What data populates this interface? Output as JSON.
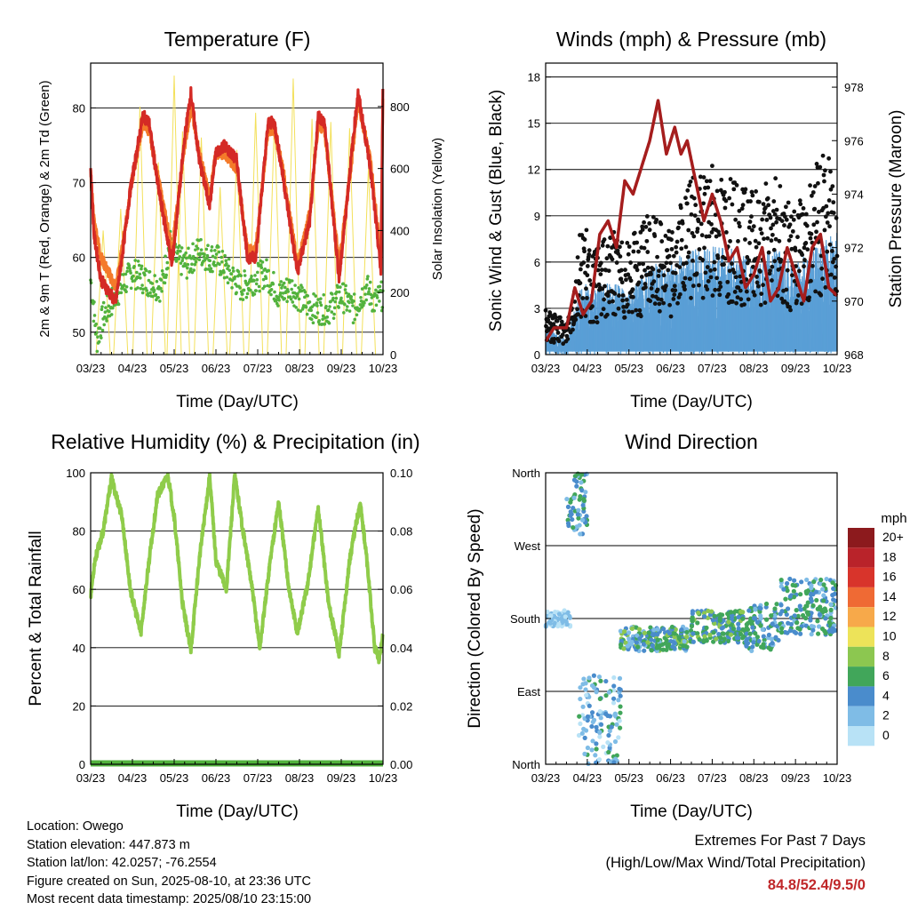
{
  "charts": {
    "temperature": {
      "title": "Temperature (F)",
      "xlabel": "Time (Day/UTC)",
      "ylabel_left": "2m & 9m T (Red, Orange) & 2m Td (Green)",
      "ylabel_right": "Solar Insolation (Yellow)"
    },
    "winds": {
      "title": "Winds (mph) & Pressure (mb)",
      "xlabel": "Time (Day/UTC)",
      "ylabel_left": "Sonic Wind & Gust (Blue, Black)",
      "ylabel_right": "Station Pressure (Maroon)"
    },
    "humidity": {
      "title": "Relative Humidity (%) & Precipitation (in)",
      "xlabel": "Time (Day/UTC)",
      "ylabel_left": "Percent & Total Rainfall"
    },
    "direction": {
      "title": "Wind Direction",
      "xlabel": "Time (Day/UTC)",
      "ylabel_left": "Direction (Colored By Speed)",
      "legend_title": "mph"
    }
  },
  "info": {
    "location": "Location: Owego",
    "elevation": "Station elevation: 447.873 m",
    "latlon": "Station lat/lon: 42.0257; -76.2554",
    "created": "Figure created on Sun, 2025-08-10, at 23:36 UTC",
    "recent": "Most recent data timestamp: 2025/08/10 23:15:00"
  },
  "extremes": {
    "title": "Extremes For Past 7 Days",
    "subtitle": "(High/Low/Max Wind/Total Precipitation)",
    "values": "84.8/52.4/9.5/0"
  },
  "chart_data": [
    {
      "id": "temperature",
      "type": "line",
      "x_ticks": [
        "03/23",
        "04/23",
        "05/23",
        "06/23",
        "07/23",
        "08/23",
        "09/23",
        "10/23"
      ],
      "y_left_ticks": [
        50,
        60,
        70,
        80
      ],
      "ylim_left": [
        47,
        86
      ],
      "y_right_ticks": [
        0,
        200,
        400,
        600,
        800
      ],
      "ylim_right": [
        0,
        940
      ],
      "grid": "horizontal",
      "series": [
        {
          "color": "#d42a25",
          "x": [
            0,
            0.08,
            0.25,
            0.6,
            0.75,
            0.95,
            1.25,
            1.4,
            1.6,
            1.95,
            2.25,
            2.4,
            2.6,
            2.85,
            3.0,
            3.2,
            3.5,
            3.75,
            3.95,
            4.25,
            4.4,
            4.6,
            4.95,
            5.25,
            5.45,
            5.6,
            5.95,
            6.25,
            6.4,
            6.7,
            6.95,
            7.0
          ],
          "y": [
            72,
            63,
            57,
            54,
            60,
            69,
            79,
            78,
            70,
            59,
            76,
            82,
            73,
            67,
            74,
            75,
            73,
            60,
            60,
            78,
            78,
            71,
            58,
            65,
            79,
            78,
            57,
            74,
            82,
            72,
            58,
            84
          ]
        },
        {
          "color": "#f47a2a",
          "x": [
            0,
            0.08,
            0.25,
            0.6,
            0.75,
            0.95,
            1.25,
            1.4,
            1.6,
            1.95,
            2.25,
            2.4,
            2.6,
            2.85,
            3.0,
            3.2,
            3.5,
            3.75,
            3.95,
            4.25,
            4.4,
            4.6,
            4.95,
            5.25,
            5.45,
            5.6,
            5.95,
            6.25,
            6.4,
            6.7,
            6.95,
            7.0
          ],
          "y": [
            71,
            65,
            60,
            56,
            61,
            69,
            78,
            77,
            71,
            61,
            75,
            80,
            74,
            68,
            74,
            74,
            72,
            61,
            61,
            77,
            77,
            72,
            59,
            66,
            78,
            77,
            59,
            73,
            81,
            73,
            60,
            83
          ]
        },
        {
          "color": "#52b23d",
          "x": [
            0,
            0.15,
            0.3,
            0.6,
            1.0,
            1.3,
            1.7,
            1.9,
            2.0,
            2.3,
            2.6,
            2.8,
            3.0,
            3.3,
            3.6,
            3.9,
            4.2,
            4.5,
            4.8,
            5.1,
            5.4,
            5.7,
            6.0,
            6.3,
            6.6,
            6.8,
            7.0
          ],
          "y": [
            57,
            49,
            52,
            55,
            58,
            57,
            56,
            62,
            60,
            59,
            61,
            60,
            60,
            58,
            56,
            57,
            58,
            55,
            56,
            54,
            53,
            53,
            55,
            53,
            56,
            54,
            55
          ]
        },
        {
          "color": "#f3e05a",
          "kind": "solar",
          "peaks": [
            0.3,
            0.72,
            1.18,
            1.62,
            2.0,
            2.2,
            2.65,
            3.1,
            3.5,
            3.95,
            4.4,
            4.85,
            5.3,
            5.75,
            6.2,
            6.65
          ],
          "vals": [
            400,
            470,
            800,
            620,
            900,
            720,
            700,
            540,
            660,
            780,
            760,
            890,
            760,
            750,
            730,
            600
          ]
        }
      ]
    },
    {
      "id": "winds",
      "type": "scatter",
      "x_ticks": [
        "03/23",
        "04/23",
        "05/23",
        "06/23",
        "07/23",
        "08/23",
        "09/23",
        "10/23"
      ],
      "y_left_ticks": [
        0,
        3,
        6,
        9,
        12,
        15,
        18
      ],
      "ylim_left": [
        0,
        18.9
      ],
      "y_right_ticks": [
        968,
        970,
        972,
        974,
        976,
        978
      ],
      "ylim_right": [
        968,
        978.9
      ],
      "grid": "horizontal",
      "series": [
        {
          "name": "",
          "color": "#111111",
          "kind": "gust_envelope",
          "x": [
            0,
            0.5,
            0.9,
            1.1,
            1.5,
            2.0,
            2.5,
            3.0,
            3.5,
            4.0,
            4.5,
            5.0,
            5.5,
            6.0,
            6.5,
            7.0
          ],
          "y": [
            3,
            2,
            9,
            6,
            8,
            7,
            9,
            8,
            11,
            12,
            11,
            10,
            11,
            9,
            12,
            13
          ]
        },
        {
          "name": "",
          "color": "#5a9fd6",
          "kind": "wind_envelope",
          "x": [
            0,
            0.5,
            0.9,
            1.1,
            1.5,
            2.0,
            2.5,
            3.0,
            3.5,
            4.0,
            4.5,
            5.0,
            5.5,
            6.0,
            6.5,
            7.0
          ],
          "y": [
            2,
            1,
            5,
            4,
            5,
            4,
            6,
            6,
            7,
            7,
            7,
            6,
            7,
            6,
            7,
            8
          ]
        },
        {
          "name": "",
          "color": "#a51d1d",
          "axis": "right",
          "x": [
            0,
            0.2,
            0.5,
            0.7,
            0.9,
            1.1,
            1.3,
            1.5,
            1.7,
            1.9,
            2.1,
            2.3,
            2.5,
            2.7,
            2.9,
            3.1,
            3.25,
            3.4,
            3.6,
            3.8,
            4.0,
            4.2,
            4.4,
            4.6,
            4.8,
            5.0,
            5.2,
            5.4,
            5.6,
            5.8,
            6.0,
            6.2,
            6.4,
            6.6,
            6.8,
            7.0
          ],
          "y": [
            968.5,
            969,
            969,
            970.5,
            969.5,
            970,
            972.5,
            973,
            972,
            974.5,
            974,
            975,
            976,
            977.5,
            975.5,
            976.5,
            975.5,
            976,
            974.5,
            973,
            974,
            973,
            971.5,
            972,
            970.5,
            971,
            972,
            970,
            970.5,
            972,
            971,
            970,
            972,
            972.5,
            970.5,
            970.2
          ]
        }
      ]
    },
    {
      "id": "humidity",
      "type": "line",
      "x_ticks": [
        "03/23",
        "04/23",
        "05/23",
        "06/23",
        "07/23",
        "08/23",
        "09/23",
        "10/23"
      ],
      "y_left_ticks": [
        0,
        20,
        40,
        60,
        80,
        100
      ],
      "ylim_left": [
        0,
        100
      ],
      "y_right_ticks": [
        "0.00",
        "0.02",
        "0.04",
        "0.06",
        "0.08",
        "0.10"
      ],
      "ylim_right": [
        0,
        0.1
      ],
      "grid": "horizontal",
      "series": [
        {
          "color": "#8fcc4a",
          "x": [
            0,
            0.1,
            0.3,
            0.5,
            0.75,
            0.95,
            1.2,
            1.4,
            1.6,
            1.85,
            2.0,
            2.2,
            2.4,
            2.6,
            2.85,
            3.0,
            3.25,
            3.45,
            3.65,
            3.85,
            4.05,
            4.3,
            4.5,
            4.75,
            4.95,
            5.2,
            5.45,
            5.7,
            5.95,
            6.2,
            6.45,
            6.6,
            6.8,
            6.9,
            7.0
          ],
          "y": [
            58,
            70,
            80,
            98,
            85,
            60,
            45,
            70,
            92,
            99,
            85,
            55,
            39,
            70,
            99,
            70,
            60,
            99,
            80,
            62,
            40,
            70,
            90,
            60,
            45,
            62,
            88,
            55,
            38,
            70,
            90,
            72,
            40,
            36,
            44
          ]
        },
        {
          "color": "#52b23d",
          "x": [
            0,
            7
          ],
          "y": [
            0,
            0
          ],
          "axis": "right"
        }
      ]
    },
    {
      "id": "direction",
      "type": "scatter",
      "x_ticks": [
        "03/23",
        "04/23",
        "05/23",
        "06/23",
        "07/23",
        "08/23",
        "09/23",
        "10/23"
      ],
      "y_ticks": [
        "North",
        "East",
        "South",
        "West",
        "North"
      ],
      "ylim": [
        0,
        360
      ],
      "grid": "horizontal",
      "legend": {
        "labels": [
          "0",
          "2",
          "4",
          "6",
          "8",
          "10",
          "12",
          "14",
          "16",
          "18",
          "20+"
        ],
        "colors": [
          "#b8e2f6",
          "#7fbce6",
          "#4a8ccc",
          "#41a65a",
          "#8cc750",
          "#ede359",
          "#f7a94a",
          "#ef6a34",
          "#d8342b",
          "#b9232a",
          "#8c1a1d"
        ],
        "placement": "right"
      },
      "clusters": [
        {
          "x": [
            0,
            0.6
          ],
          "dir": [
            170,
            190
          ],
          "speed": [
            0,
            3
          ]
        },
        {
          "x": [
            0.5,
            1.0
          ],
          "dir": [
            280,
            360
          ],
          "speed": [
            2,
            7
          ]
        },
        {
          "x": [
            0.8,
            1.8
          ],
          "dir": [
            0,
            110
          ],
          "speed": [
            0,
            6
          ]
        },
        {
          "x": [
            1.8,
            3.5
          ],
          "dir": [
            140,
            170
          ],
          "speed": [
            2,
            8
          ]
        },
        {
          "x": [
            3.5,
            4.8
          ],
          "dir": [
            150,
            190
          ],
          "speed": [
            3,
            8
          ]
        },
        {
          "x": [
            4.8,
            5.6
          ],
          "dir": [
            140,
            200
          ],
          "speed": [
            2,
            7
          ]
        },
        {
          "x": [
            5.6,
            7.0
          ],
          "dir": [
            160,
            230
          ],
          "speed": [
            2,
            7
          ]
        }
      ]
    }
  ]
}
